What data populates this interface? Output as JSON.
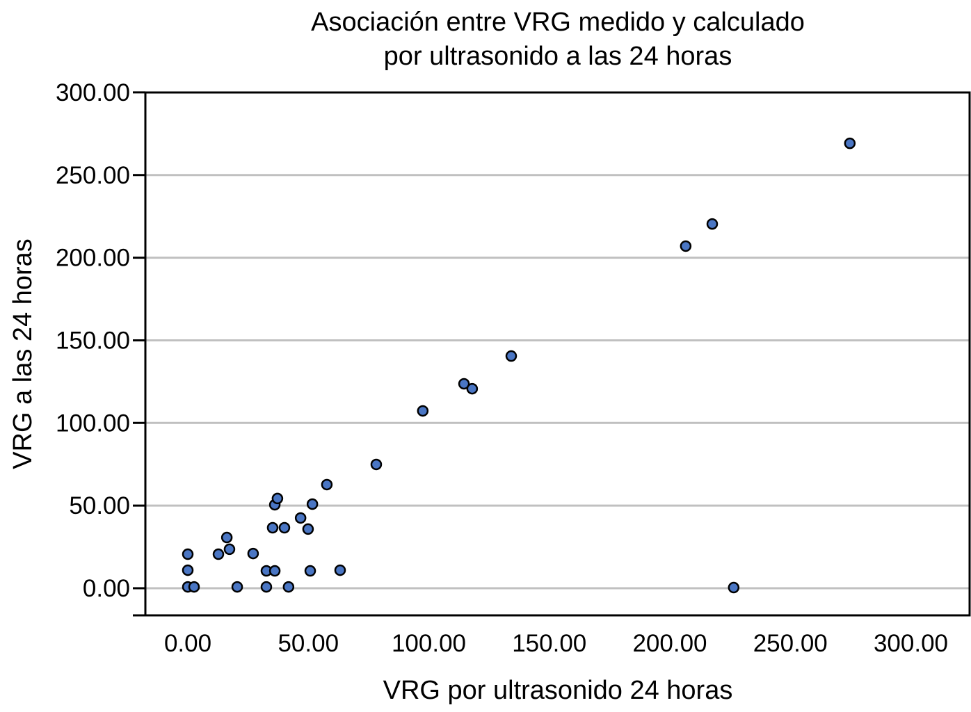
{
  "chart_data": {
    "type": "scatter",
    "title": [
      "Asociación entre VRG medido y calculado",
      "por ultrasonido a las 24 horas"
    ],
    "xlabel": "VRG por ultrasonido 24 horas",
    "ylabel": "VRG a las 24 horas",
    "xlim": [
      -17,
      325
    ],
    "ylim": [
      -16,
      300
    ],
    "xticks": [
      0,
      50,
      100,
      150,
      200,
      250,
      300
    ],
    "xtick_labels": [
      "0.00",
      "50.00",
      "100.00",
      "150.00",
      "200.00",
      "250.00",
      "300.00"
    ],
    "yticks": [
      0,
      50,
      100,
      150,
      200,
      250,
      300
    ],
    "ytick_labels": [
      "0.00",
      "50.00",
      "100.00",
      "150.00",
      "200.00",
      "250.00",
      "300.00"
    ],
    "grid": "horizontal",
    "marker_color": "#4a76c4",
    "marker_edge": "#000000",
    "points": [
      {
        "x": 0,
        "y": 20.6
      },
      {
        "x": 0,
        "y": 10.9
      },
      {
        "x": 0,
        "y": 0.8
      },
      {
        "x": 2.6,
        "y": 0.8
      },
      {
        "x": 12.7,
        "y": 20.6
      },
      {
        "x": 16.2,
        "y": 30.7
      },
      {
        "x": 17.3,
        "y": 23.6
      },
      {
        "x": 20.5,
        "y": 0.8
      },
      {
        "x": 27.1,
        "y": 21.0
      },
      {
        "x": 32.6,
        "y": 10.5
      },
      {
        "x": 32.6,
        "y": 0.8
      },
      {
        "x": 36.1,
        "y": 10.5
      },
      {
        "x": 35.2,
        "y": 36.6
      },
      {
        "x": 36.1,
        "y": 50.5
      },
      {
        "x": 37.2,
        "y": 54.3
      },
      {
        "x": 40.1,
        "y": 36.6
      },
      {
        "x": 41.8,
        "y": 0.8
      },
      {
        "x": 46.8,
        "y": 42.5
      },
      {
        "x": 49.9,
        "y": 35.8
      },
      {
        "x": 50.8,
        "y": 10.5
      },
      {
        "x": 51.7,
        "y": 50.9
      },
      {
        "x": 57.7,
        "y": 62.7
      },
      {
        "x": 63.2,
        "y": 10.9
      },
      {
        "x": 78.2,
        "y": 74.9
      },
      {
        "x": 97.5,
        "y": 107.3
      },
      {
        "x": 114.6,
        "y": 123.7
      },
      {
        "x": 118.0,
        "y": 120.7
      },
      {
        "x": 134.2,
        "y": 140.5
      },
      {
        "x": 206.6,
        "y": 207.0
      },
      {
        "x": 217.6,
        "y": 220.4
      },
      {
        "x": 226.5,
        "y": 0.4
      },
      {
        "x": 274.7,
        "y": 269.2
      }
    ]
  }
}
